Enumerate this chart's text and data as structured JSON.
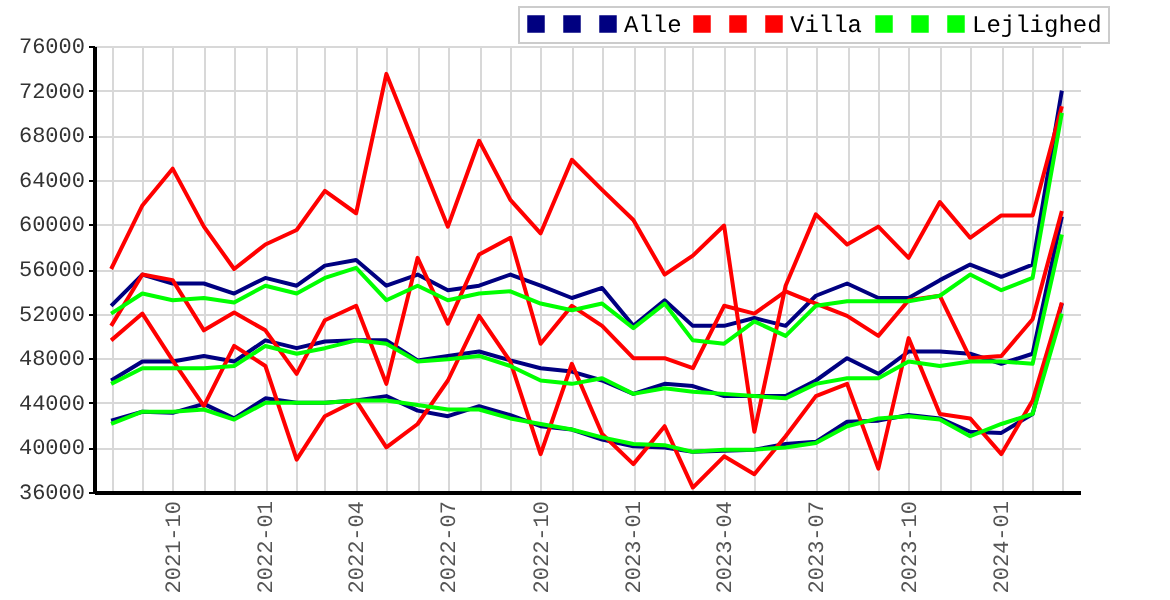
{
  "chart_data": {
    "type": "line",
    "x": [
      "2021-08",
      "2021-09",
      "2021-10",
      "2021-11",
      "2021-12",
      "2022-01",
      "2022-02",
      "2022-03",
      "2022-04",
      "2022-05",
      "2022-06",
      "2022-07",
      "2022-08",
      "2022-09",
      "2022-10",
      "2022-11",
      "2022-12",
      "2023-01",
      "2023-02",
      "2023-03",
      "2023-04",
      "2023-05",
      "2023-06",
      "2023-07",
      "2023-08",
      "2023-09",
      "2023-10",
      "2023-11",
      "2023-12",
      "2024-01",
      "2024-02",
      "2024-03"
    ],
    "series": [
      {
        "color": "#000080",
        "values": [
          52700,
          55500,
          54700,
          54700,
          53800,
          55200,
          54500,
          56300,
          56800,
          54500,
          55500,
          54100,
          54500,
          55500,
          54500,
          53400,
          54300,
          50900,
          53200,
          50900,
          50900,
          51600,
          50900,
          53600,
          54700,
          53400,
          53400,
          55000,
          56400,
          55300,
          56400,
          72000
        ]
      },
      {
        "color": "#000080",
        "values": [
          46000,
          47700,
          47700,
          48200,
          47700,
          49600,
          48900,
          49500,
          49600,
          49600,
          47800,
          48200,
          48600,
          47800,
          47100,
          46800,
          46000,
          44800,
          45700,
          45500,
          44600,
          44600,
          44600,
          46000,
          48000,
          46600,
          48600,
          48600,
          48400,
          47500,
          48400,
          60700
        ]
      },
      {
        "name": "Alle",
        "color": "#000080",
        "values": [
          42400,
          43200,
          43100,
          43900,
          42600,
          44400,
          44000,
          44000,
          44200,
          44600,
          43300,
          42800,
          43700,
          42900,
          41900,
          41600,
          40700,
          40100,
          40000,
          39600,
          39700,
          39800,
          40300,
          40500,
          42300,
          42400,
          42900,
          42600,
          41400,
          41300,
          43000,
          52900
        ]
      },
      {
        "color": "#ff0000",
        "values": [
          56000,
          61700,
          65000,
          59800,
          56000,
          58200,
          59500,
          63000,
          61000,
          73500,
          66500,
          59800,
          67500,
          62200,
          59200,
          65800,
          63100,
          60400,
          55500,
          57200,
          59900,
          41400,
          54500,
          60900,
          58200,
          59800,
          57000,
          62000,
          58800,
          60800,
          60800,
          70600
        ]
      },
      {
        "color": "#ff0000",
        "values": [
          50900,
          55500,
          55000,
          50500,
          52100,
          50500,
          46600,
          51400,
          52700,
          45700,
          57000,
          51100,
          57300,
          58800,
          49300,
          52700,
          50900,
          48000,
          48000,
          47100,
          52700,
          52000,
          54000,
          52900,
          51800,
          50000,
          53200,
          53600,
          48000,
          48200,
          51500,
          61200
        ]
      },
      {
        "name": "Villa",
        "color": "#ff0000",
        "values": [
          49600,
          52000,
          47800,
          43700,
          49100,
          47300,
          38900,
          42800,
          44200,
          40000,
          42100,
          46000,
          51800,
          47700,
          39400,
          47500,
          41200,
          38500,
          41900,
          36400,
          39200,
          37600,
          41000,
          44600,
          45700,
          38100,
          49800,
          43000,
          42600,
          39400,
          44200,
          53000
        ]
      },
      {
        "color": "#00ff00",
        "values": [
          52000,
          53800,
          53200,
          53400,
          53000,
          54500,
          53800,
          55200,
          56100,
          53200,
          54500,
          53200,
          53800,
          54000,
          52900,
          52300,
          52900,
          50700,
          52900,
          49600,
          49300,
          51300,
          50000,
          52700,
          53100,
          53100,
          53100,
          53600,
          55500,
          54100,
          55200,
          70000
        ]
      },
      {
        "color": "#00ff00",
        "values": [
          45700,
          47100,
          47100,
          47100,
          47300,
          49100,
          48400,
          48900,
          49600,
          49300,
          47700,
          47900,
          48200,
          47300,
          46000,
          45700,
          46200,
          44800,
          45300,
          45000,
          44800,
          44600,
          44400,
          45700,
          46200,
          46200,
          47700,
          47300,
          47700,
          47700,
          47500,
          59100
        ]
      },
      {
        "name": "Lejlighed",
        "color": "#00ff00",
        "values": [
          42100,
          43200,
          43200,
          43400,
          42500,
          44000,
          44000,
          44000,
          44200,
          44200,
          43800,
          43400,
          43400,
          42600,
          42100,
          41600,
          40900,
          40300,
          40200,
          39600,
          39800,
          39800,
          40000,
          40400,
          41900,
          42600,
          42800,
          42500,
          41000,
          42100,
          43000,
          52000
        ]
      }
    ],
    "xlim": [
      "2021-07-15",
      "2024-03-19"
    ],
    "xticks": [
      {
        "value": "2021-08",
        "label": null
      },
      {
        "value": "2021-09",
        "label": null
      },
      "2021-10",
      {
        "value": "2021-11",
        "label": null
      },
      {
        "value": "2021-12",
        "label": null
      },
      "2022-01",
      {
        "value": "2022-02",
        "label": null
      },
      {
        "value": "2022-03",
        "label": null
      },
      "2022-04",
      {
        "value": "2022-05",
        "label": null
      },
      {
        "value": "2022-06",
        "label": null
      },
      "2022-07",
      {
        "value": "2022-08",
        "label": null
      },
      {
        "value": "2022-09",
        "label": null
      },
      "2022-10",
      {
        "value": "2022-11",
        "label": null
      },
      {
        "value": "2022-12",
        "label": null
      },
      "2023-01",
      {
        "value": "2023-02",
        "label": null
      },
      {
        "value": "2023-03",
        "label": null
      },
      "2023-04",
      {
        "value": "2023-05",
        "label": null
      },
      {
        "value": "2023-06",
        "label": null
      },
      "2023-07",
      {
        "value": "2023-08",
        "label": null
      },
      {
        "value": "2023-09",
        "label": null
      },
      "2023-10",
      {
        "value": "2023-11",
        "label": null
      },
      {
        "value": "2023-12",
        "label": null
      },
      "2024-01",
      {
        "value": "2024-02",
        "label": null
      },
      {
        "value": "2024-03",
        "label": null
      }
    ],
    "ylim": [
      36000,
      76000
    ],
    "yticks": [
      36000,
      40000,
      44000,
      48000,
      52000,
      56000,
      60000,
      64000,
      68000,
      72000,
      76000
    ],
    "grid": true,
    "legend": "top right"
  }
}
